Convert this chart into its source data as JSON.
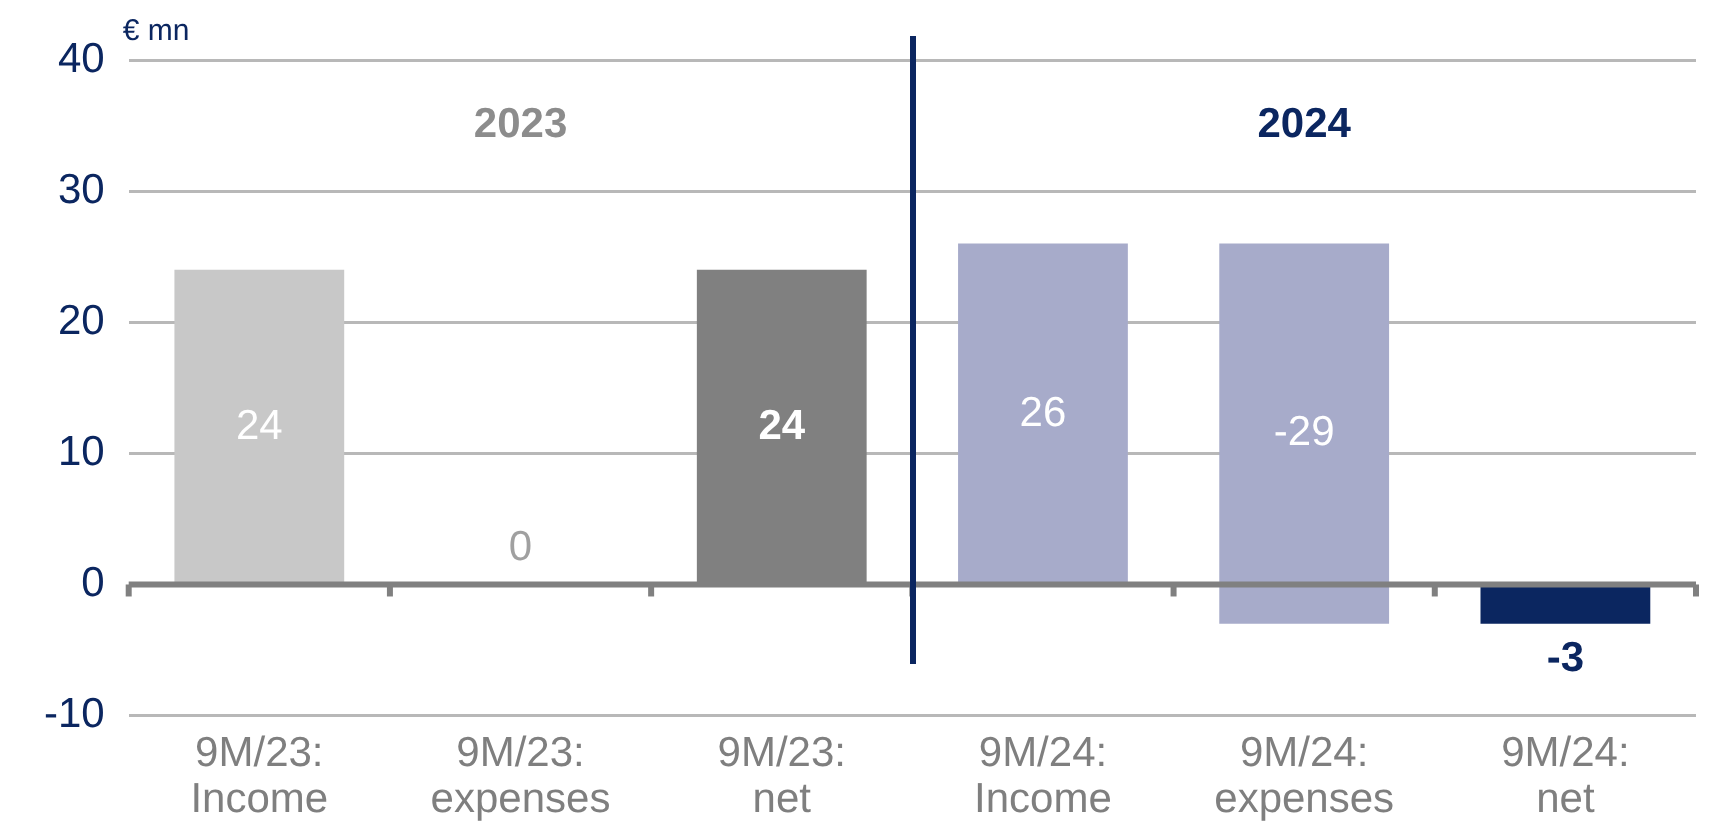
{
  "chart_data": {
    "type": "bar",
    "ylabel": "€ mn",
    "categories": [
      "9M/23: Income",
      "9M/23: expenses",
      "9M/23: net",
      "9M/24: Income",
      "9M/24: expenses",
      "9M/24: net"
    ],
    "values": [
      24,
      0,
      24,
      26,
      -29,
      -3
    ],
    "base": [
      0,
      null,
      0,
      0,
      26,
      0
    ],
    "colors": [
      "#c8c8c8",
      "#c8c8c8",
      "#808080",
      "#a7abca",
      "#a7abca",
      "#0b2660"
    ],
    "data_labels": true,
    "ylim": [
      -10,
      40
    ],
    "yticks": [
      -10,
      0,
      10,
      20,
      30,
      40
    ],
    "grid": "y",
    "legend": false,
    "annotations": [
      "2023",
      "2024"
    ]
  }
}
